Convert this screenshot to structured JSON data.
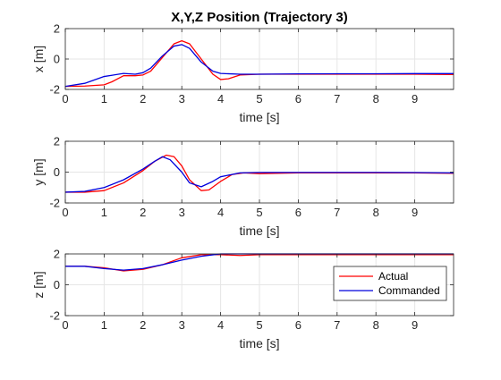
{
  "chart_data": [
    {
      "type": "line",
      "title": "X,Y,Z Position (Trajectory 3)",
      "xlabel": "time [s]",
      "ylabel": "x [m]",
      "xlim": [
        0,
        10
      ],
      "ylim": [
        -2,
        2
      ],
      "xticks": [
        0,
        1,
        2,
        3,
        4,
        5,
        6,
        7,
        8,
        9
      ],
      "yticks": [
        -2,
        0,
        2
      ],
      "grid": true,
      "series": [
        {
          "name": "Actual",
          "color": "#ff0000",
          "x": [
            0,
            0.5,
            1.0,
            1.2,
            1.5,
            1.8,
            2.0,
            2.2,
            2.5,
            2.8,
            3.0,
            3.2,
            3.5,
            3.8,
            4.0,
            4.2,
            4.5,
            5.0,
            6.0,
            7.0,
            8.0,
            9.0,
            10.0
          ],
          "y": [
            -1.8,
            -1.78,
            -1.7,
            -1.5,
            -1.1,
            -1.1,
            -1.05,
            -0.8,
            0.1,
            1.0,
            1.2,
            1.0,
            0.0,
            -1.0,
            -1.35,
            -1.3,
            -1.05,
            -1.0,
            -1.0,
            -1.0,
            -1.0,
            -1.0,
            -1.02
          ]
        },
        {
          "name": "Commanded",
          "color": "#0000dd",
          "x": [
            0,
            0.5,
            1.0,
            1.5,
            1.8,
            2.0,
            2.2,
            2.5,
            2.8,
            3.0,
            3.2,
            3.5,
            3.8,
            4.0,
            4.5,
            5.0,
            6.0,
            7.0,
            8.0,
            9.0,
            10.0
          ],
          "y": [
            -1.8,
            -1.6,
            -1.15,
            -0.95,
            -1.0,
            -0.9,
            -0.6,
            0.2,
            0.85,
            0.95,
            0.7,
            -0.2,
            -0.8,
            -0.95,
            -1.0,
            -1.0,
            -0.98,
            -0.97,
            -0.97,
            -0.96,
            -0.96
          ]
        }
      ]
    },
    {
      "type": "line",
      "title": "",
      "xlabel": "time [s]",
      "ylabel": "y [m]",
      "xlim": [
        0,
        10
      ],
      "ylim": [
        -2,
        2
      ],
      "xticks": [
        0,
        1,
        2,
        3,
        4,
        5,
        6,
        7,
        8,
        9
      ],
      "yticks": [
        -2,
        0,
        2
      ],
      "grid": true,
      "series": [
        {
          "name": "Actual",
          "color": "#ff0000",
          "x": [
            0,
            0.5,
            1.0,
            1.5,
            2.0,
            2.3,
            2.6,
            2.8,
            3.0,
            3.2,
            3.5,
            3.7,
            4.0,
            4.3,
            4.6,
            5.0,
            6.0,
            7.0,
            8.0,
            9.0,
            10.0
          ],
          "y": [
            -1.3,
            -1.3,
            -1.2,
            -0.7,
            0.1,
            0.7,
            1.1,
            1.0,
            0.4,
            -0.5,
            -1.2,
            -1.15,
            -0.6,
            -0.15,
            -0.05,
            -0.1,
            -0.05,
            -0.05,
            -0.05,
            -0.05,
            -0.08
          ]
        },
        {
          "name": "Commanded",
          "color": "#0000dd",
          "x": [
            0,
            0.5,
            1.0,
            1.5,
            2.0,
            2.3,
            2.5,
            2.7,
            3.0,
            3.2,
            3.5,
            3.8,
            4.0,
            4.5,
            5.0,
            6.0,
            7.0,
            8.0,
            9.0,
            10.0
          ],
          "y": [
            -1.3,
            -1.25,
            -1.0,
            -0.5,
            0.2,
            0.7,
            1.0,
            0.8,
            0.0,
            -0.7,
            -0.95,
            -0.6,
            -0.3,
            -0.05,
            -0.02,
            -0.02,
            -0.02,
            -0.02,
            -0.03,
            -0.05
          ]
        }
      ]
    },
    {
      "type": "line",
      "title": "",
      "xlabel": "time [s]",
      "ylabel": "z [m]",
      "xlim": [
        0,
        10
      ],
      "ylim": [
        -2,
        2
      ],
      "xticks": [
        0,
        1,
        2,
        3,
        4,
        5,
        6,
        7,
        8,
        9
      ],
      "yticks": [
        -2,
        0,
        2
      ],
      "grid": true,
      "legend": {
        "placement": "lower-right",
        "entries": [
          "Actual",
          "Commanded"
        ]
      },
      "series": [
        {
          "name": "Actual",
          "color": "#ff0000",
          "x": [
            0,
            0.5,
            1.0,
            1.5,
            2.0,
            2.5,
            3.0,
            3.5,
            4.0,
            4.5,
            5.0,
            6.0,
            7.0,
            8.0,
            9.0,
            10.0
          ],
          "y": [
            1.2,
            1.2,
            1.1,
            0.9,
            1.0,
            1.3,
            1.75,
            1.95,
            1.95,
            1.9,
            1.95,
            1.95,
            1.95,
            1.95,
            1.95,
            1.95
          ]
        },
        {
          "name": "Commanded",
          "color": "#0000dd",
          "x": [
            0,
            0.5,
            1.0,
            1.5,
            2.0,
            2.5,
            3.0,
            3.5,
            4.0,
            4.5,
            5.0,
            6.0,
            7.0,
            8.0,
            9.0,
            10.0
          ],
          "y": [
            1.2,
            1.2,
            1.05,
            0.95,
            1.05,
            1.3,
            1.6,
            1.85,
            2.0,
            2.0,
            2.0,
            2.0,
            2.0,
            2.0,
            2.0,
            2.0
          ]
        }
      ]
    }
  ]
}
